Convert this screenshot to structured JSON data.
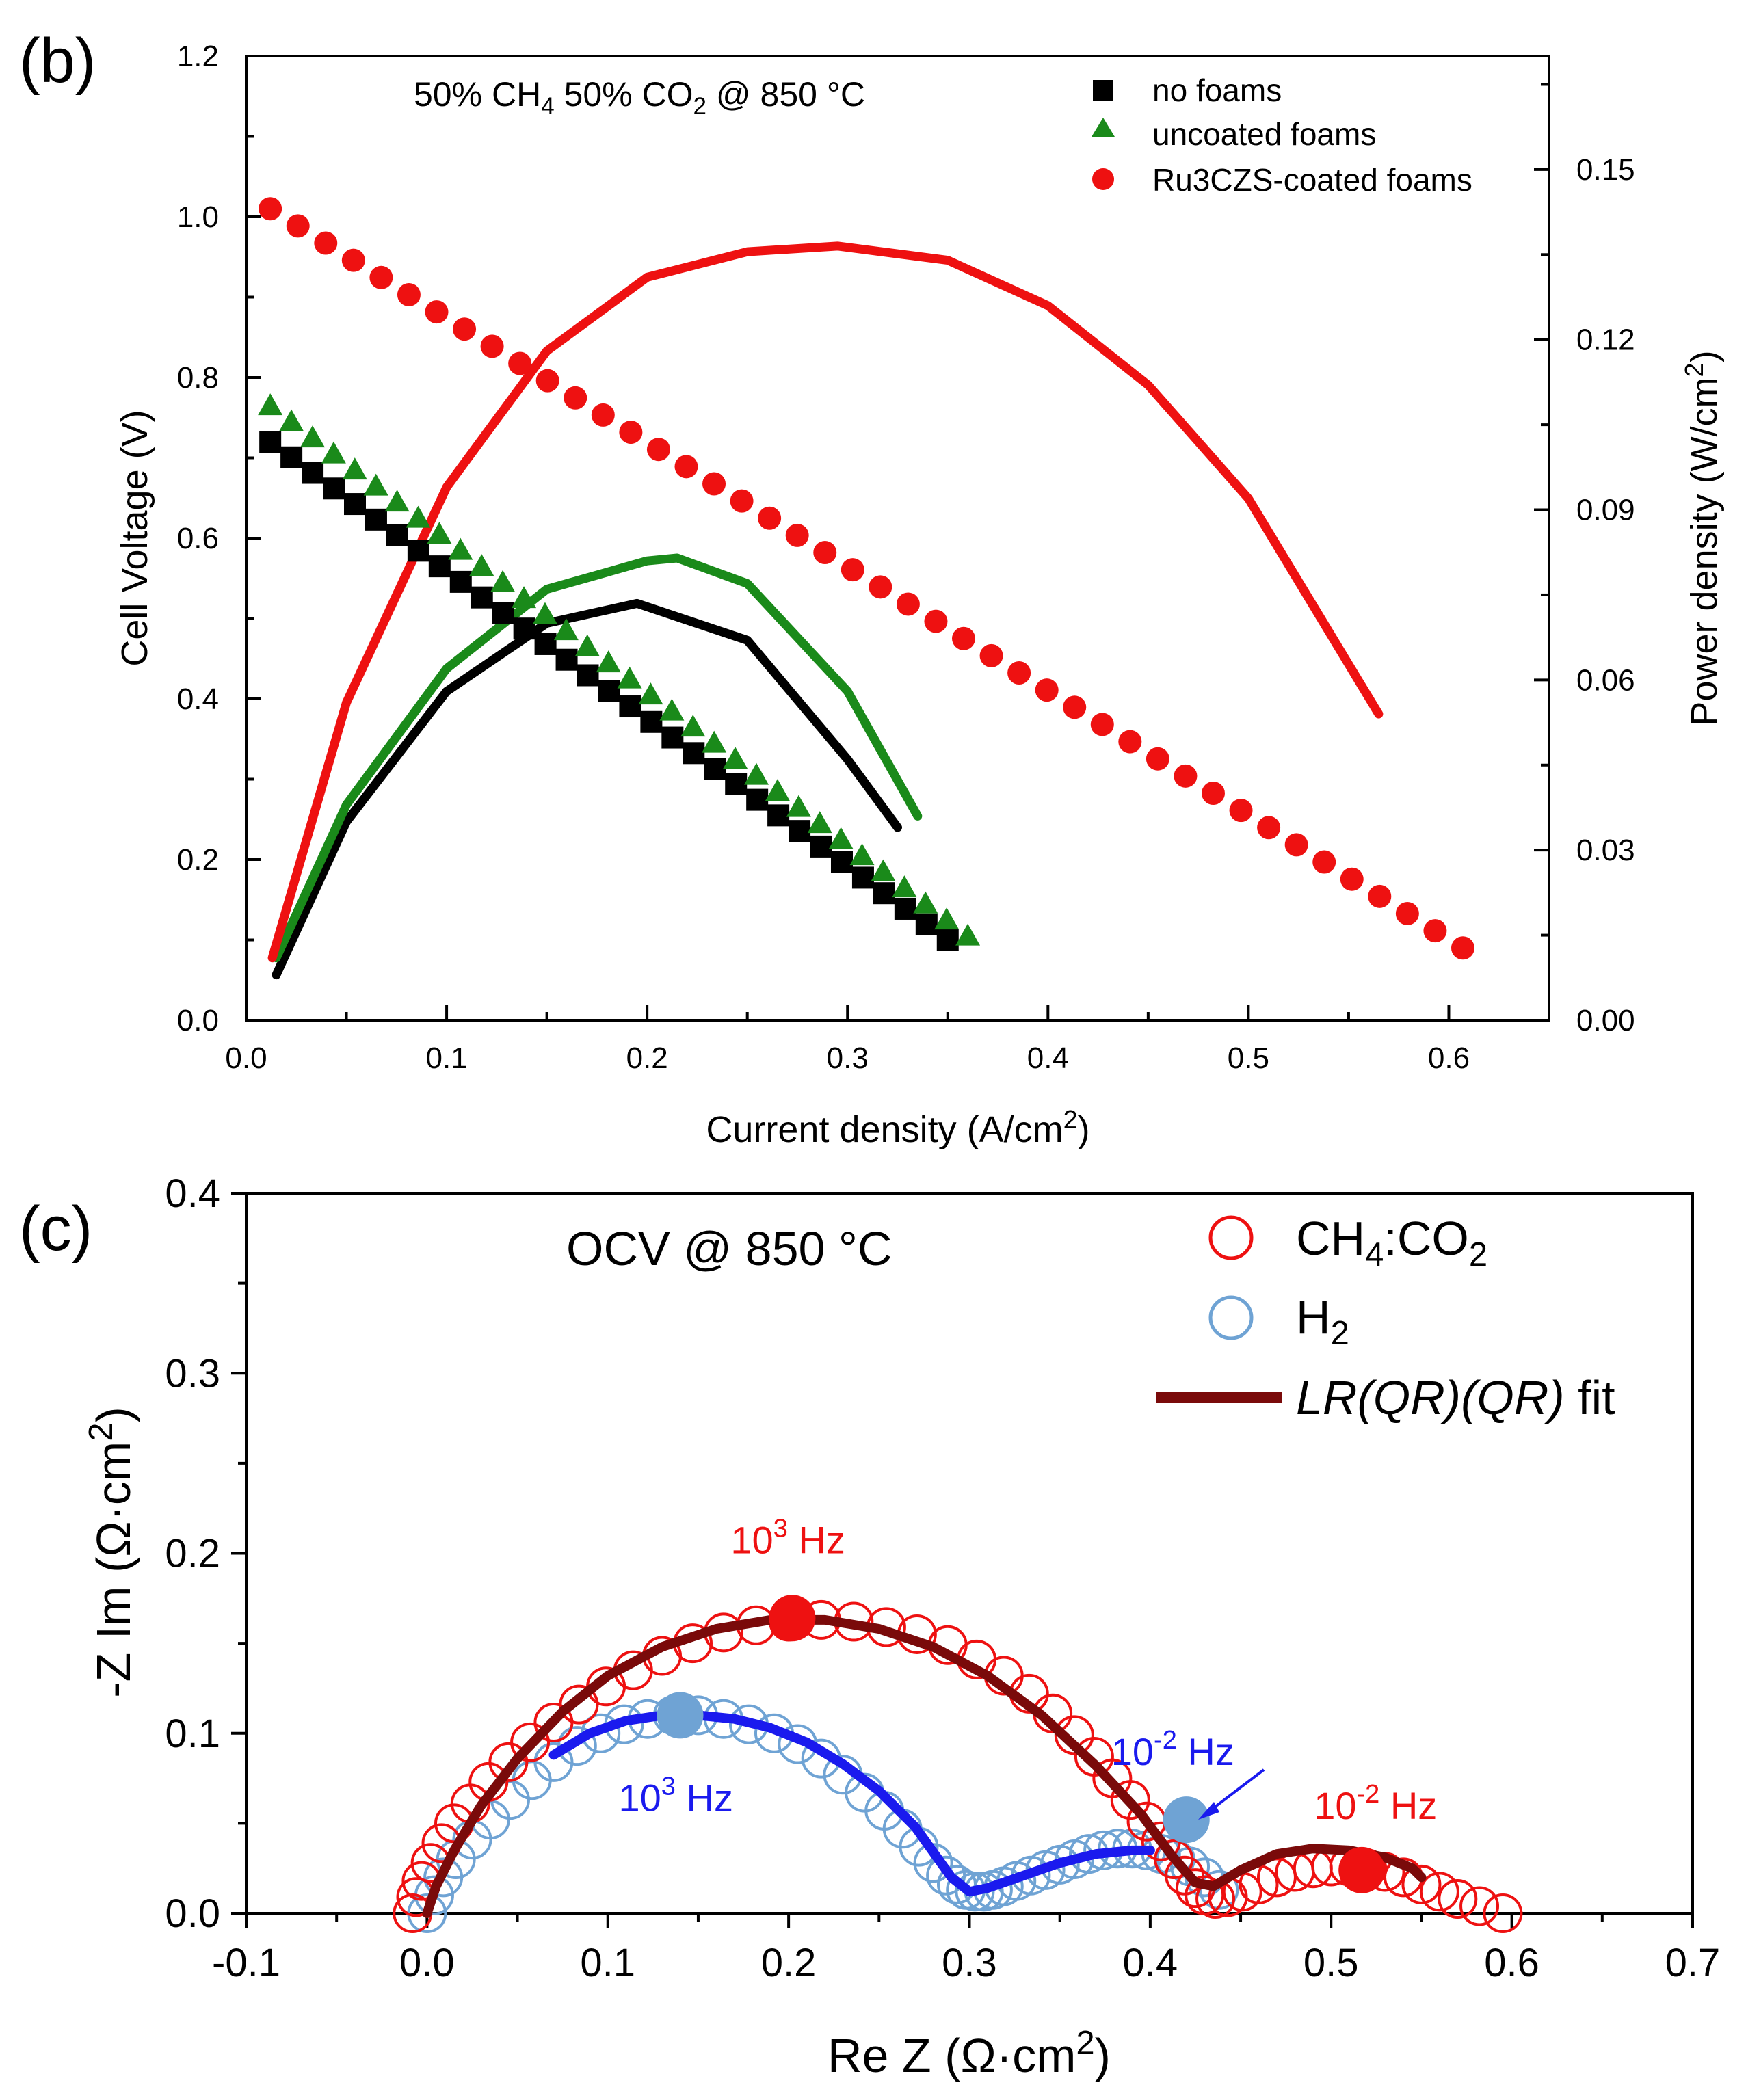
{
  "chart_data": [
    {
      "type": "line",
      "panel": "(b)",
      "title": "50% CH4 50% CO2 @ 850 °C",
      "title_parts": {
        "p1": "50% CH",
        "s1": "4",
        "p2": " 50% CO",
        "s2": "2",
        "p3": " @ 850 °C"
      },
      "xlabel": "Current density (A/cm2)",
      "xlabel_parts": {
        "main": "Current density (A/cm",
        "sup": "2",
        "end": ")"
      },
      "ylabel": "Cell Voltage (V)",
      "y2label": "Power density (W/cm2)",
      "y2label_parts": {
        "main": "Power density (W/cm",
        "sup": "2",
        "end": ")"
      },
      "xlim": [
        0.0,
        0.65
      ],
      "ylim": [
        0.0,
        1.2
      ],
      "y2lim": [
        0.0,
        0.17
      ],
      "xticks": [
        0.0,
        0.1,
        0.2,
        0.3,
        0.4,
        0.5,
        0.6
      ],
      "xtick_labels": [
        "0.0",
        "0.1",
        "0.2",
        "0.3",
        "0.4",
        "0.5",
        "0.6"
      ],
      "yticks": [
        0.0,
        0.2,
        0.4,
        0.6,
        0.8,
        1.0,
        1.2
      ],
      "ytick_labels": [
        "0.0",
        "0.2",
        "0.4",
        "0.6",
        "0.8",
        "1.0",
        "1.2"
      ],
      "y2ticks": [
        0.0,
        0.03,
        0.06,
        0.09,
        0.12,
        0.15
      ],
      "y2tick_labels": [
        "0.00",
        "0.03",
        "0.06",
        "0.09",
        "0.12",
        "0.15"
      ],
      "legend": [
        "no foams",
        "uncoated foams",
        "Ru3CZS-coated foams"
      ],
      "legend_position": "top-right",
      "series": [
        {
          "name": "no foams",
          "color": "#000000",
          "marker": "square",
          "axis": "left",
          "x_start": 0.012,
          "x_end": 0.35,
          "n": 33,
          "v_start": 0.72,
          "v_end": 0.1
        },
        {
          "name": "uncoated foams",
          "color": "#1a8a1a",
          "marker": "triangle",
          "axis": "left",
          "x_start": 0.012,
          "x_end": 0.36,
          "n": 34,
          "v_start": 0.765,
          "v_end": 0.105
        },
        {
          "name": "Ru3CZS-coated foams",
          "color": "#ee1111",
          "marker": "circle",
          "axis": "left",
          "x_start": 0.012,
          "x_end": 0.607,
          "n": 44,
          "v_start": 1.01,
          "v_end": 0.09
        },
        {
          "name": "no foams power",
          "color": "#000000",
          "marker": "none",
          "axis": "right",
          "x": [
            0.015,
            0.05,
            0.1,
            0.15,
            0.195,
            0.25,
            0.3,
            0.325
          ],
          "y": [
            0.008,
            0.035,
            0.058,
            0.07,
            0.0735,
            0.067,
            0.046,
            0.034
          ]
        },
        {
          "name": "uncoated foams power",
          "color": "#1a8a1a",
          "marker": "none",
          "axis": "right",
          "x": [
            0.015,
            0.05,
            0.1,
            0.15,
            0.2,
            0.215,
            0.25,
            0.3,
            0.335
          ],
          "y": [
            0.011,
            0.038,
            0.062,
            0.076,
            0.081,
            0.0815,
            0.077,
            0.058,
            0.036
          ]
        },
        {
          "name": "Ru3CZS-coated foams power",
          "color": "#ee1111",
          "marker": "none",
          "axis": "right",
          "x": [
            0.013,
            0.05,
            0.1,
            0.15,
            0.2,
            0.25,
            0.295,
            0.35,
            0.4,
            0.45,
            0.5,
            0.565
          ],
          "y": [
            0.011,
            0.056,
            0.094,
            0.118,
            0.131,
            0.1355,
            0.1365,
            0.134,
            0.126,
            0.112,
            0.092,
            0.054
          ]
        }
      ]
    },
    {
      "type": "scatter",
      "panel": "(c)",
      "title": "OCV @ 850 °C",
      "xlabel": "Re Z (Ω·cm2)",
      "xlabel_parts": {
        "main": "Re Z (Ω·cm",
        "sup": "2",
        "end": ")"
      },
      "ylabel": "-Z Im (Ω·cm2)",
      "ylabel_parts": {
        "main": "-Z Im (Ω·cm",
        "sup": "2",
        "end": ")"
      },
      "xlim": [
        -0.1,
        0.7
      ],
      "ylim": [
        0.0,
        0.4
      ],
      "xticks": [
        -0.1,
        0.0,
        0.1,
        0.2,
        0.3,
        0.4,
        0.5,
        0.6,
        0.7
      ],
      "xtick_labels": [
        "-0.1",
        "0.0",
        "0.1",
        "0.2",
        "0.3",
        "0.4",
        "0.5",
        "0.6",
        "0.7"
      ],
      "yticks": [
        0.0,
        0.1,
        0.2,
        0.3,
        0.4
      ],
      "ytick_labels": [
        "0.0",
        "0.1",
        "0.2",
        "0.3",
        "0.4"
      ],
      "legend": [
        "CH4:CO2",
        "H2",
        "LR(QR)(QR) fit"
      ],
      "legend_parts": {
        "ch4": {
          "p1": "CH",
          "s1": "4",
          "p2": ":CO",
          "s2": "2"
        },
        "h2": {
          "p1": "H",
          "s1": "2"
        },
        "fit": {
          "italic": "LR(QR)(QR)",
          "rest": " fit"
        }
      },
      "legend_position": "top-right",
      "annotations": [
        {
          "text": "10^3 Hz",
          "base": "10",
          "sup": "3",
          "rest": " Hz",
          "color": "#ee1111",
          "x": 0.202,
          "y": 0.164
        },
        {
          "text": "10^3 Hz",
          "base": "10",
          "sup": "3",
          "rest": " Hz",
          "color": "#1a1aee",
          "x": 0.14,
          "y": 0.11
        },
        {
          "text": "10^-2 Hz",
          "base": "10",
          "sup": "-2",
          "rest": " Hz",
          "color": "#1a1aee",
          "x": 0.42,
          "y": 0.052
        },
        {
          "text": "10^-2 Hz",
          "base": "10",
          "sup": "-2",
          "rest": " Hz",
          "color": "#ee1111",
          "x": 0.517,
          "y": 0.024
        }
      ],
      "series": [
        {
          "name": "CH4:CO2",
          "color": "#ee1111",
          "marker": "open-circle",
          "x": [
            -0.008,
            -0.006,
            -0.003,
            0.002,
            0.008,
            0.015,
            0.024,
            0.034,
            0.045,
            0.057,
            0.07,
            0.084,
            0.099,
            0.114,
            0.13,
            0.147,
            0.164,
            0.182,
            0.2,
            0.218,
            0.236,
            0.254,
            0.271,
            0.288,
            0.304,
            0.319,
            0.333,
            0.346,
            0.358,
            0.369,
            0.379,
            0.389,
            0.398,
            0.406,
            0.413,
            0.419,
            0.425,
            0.43,
            0.436,
            0.443,
            0.451,
            0.46,
            0.47,
            0.48,
            0.49,
            0.5,
            0.51,
            0.52,
            0.53,
            0.54,
            0.55,
            0.56,
            0.57,
            0.582,
            0.595
          ],
          "y": [
            0.0,
            0.009,
            0.018,
            0.028,
            0.039,
            0.05,
            0.061,
            0.073,
            0.084,
            0.095,
            0.106,
            0.116,
            0.126,
            0.135,
            0.143,
            0.15,
            0.156,
            0.16,
            0.162,
            0.163,
            0.162,
            0.159,
            0.155,
            0.149,
            0.141,
            0.132,
            0.122,
            0.111,
            0.099,
            0.087,
            0.075,
            0.063,
            0.051,
            0.04,
            0.03,
            0.021,
            0.014,
            0.01,
            0.008,
            0.009,
            0.012,
            0.016,
            0.02,
            0.023,
            0.025,
            0.026,
            0.026,
            0.025,
            0.023,
            0.02,
            0.016,
            0.012,
            0.008,
            0.004,
            0.0
          ]
        },
        {
          "name": "H2",
          "color": "#6fa3d4",
          "marker": "open-circle",
          "x": [
            0.0,
            0.004,
            0.009,
            0.016,
            0.025,
            0.035,
            0.046,
            0.058,
            0.07,
            0.083,
            0.096,
            0.109,
            0.122,
            0.136,
            0.15,
            0.164,
            0.178,
            0.192,
            0.205,
            0.218,
            0.23,
            0.242,
            0.253,
            0.263,
            0.272,
            0.28,
            0.287,
            0.293,
            0.298,
            0.303,
            0.308,
            0.313,
            0.319,
            0.326,
            0.334,
            0.342,
            0.35,
            0.358,
            0.366,
            0.374,
            0.382,
            0.39,
            0.398,
            0.406,
            0.414,
            0.422,
            0.43,
            0.438
          ],
          "y": [
            0.0,
            0.01,
            0.02,
            0.03,
            0.041,
            0.052,
            0.063,
            0.074,
            0.084,
            0.093,
            0.1,
            0.105,
            0.108,
            0.11,
            0.11,
            0.108,
            0.105,
            0.1,
            0.094,
            0.086,
            0.077,
            0.067,
            0.057,
            0.047,
            0.037,
            0.028,
            0.021,
            0.016,
            0.013,
            0.012,
            0.012,
            0.013,
            0.015,
            0.018,
            0.021,
            0.024,
            0.027,
            0.03,
            0.033,
            0.035,
            0.036,
            0.036,
            0.035,
            0.033,
            0.03,
            0.026,
            0.02,
            0.013
          ]
        },
        {
          "name": "LR(QR)(QR) fit",
          "color": "#7a0a0a",
          "marker": "none",
          "x": [
            0.0,
            0.005,
            0.015,
            0.03,
            0.05,
            0.075,
            0.1,
            0.13,
            0.16,
            0.19,
            0.22,
            0.25,
            0.28,
            0.31,
            0.34,
            0.37,
            0.395,
            0.412,
            0.425,
            0.435,
            0.45,
            0.47,
            0.49,
            0.51,
            0.53,
            0.545,
            0.55
          ],
          "y": [
            0.0,
            0.015,
            0.035,
            0.06,
            0.086,
            0.112,
            0.132,
            0.148,
            0.158,
            0.163,
            0.163,
            0.158,
            0.148,
            0.132,
            0.11,
            0.082,
            0.055,
            0.032,
            0.017,
            0.015,
            0.024,
            0.033,
            0.036,
            0.035,
            0.031,
            0.025,
            0.02
          ]
        },
        {
          "name": "H2 fit",
          "color": "#1a1aee",
          "marker": "none",
          "x": [
            0.07,
            0.09,
            0.11,
            0.13,
            0.15,
            0.17,
            0.19,
            0.21,
            0.23,
            0.25,
            0.27,
            0.28,
            0.29,
            0.3,
            0.31,
            0.33,
            0.35,
            0.37,
            0.39,
            0.4
          ],
          "y": [
            0.088,
            0.1,
            0.107,
            0.11,
            0.11,
            0.108,
            0.103,
            0.095,
            0.083,
            0.068,
            0.048,
            0.034,
            0.02,
            0.012,
            0.014,
            0.021,
            0.028,
            0.033,
            0.035,
            0.035
          ]
        }
      ]
    }
  ]
}
